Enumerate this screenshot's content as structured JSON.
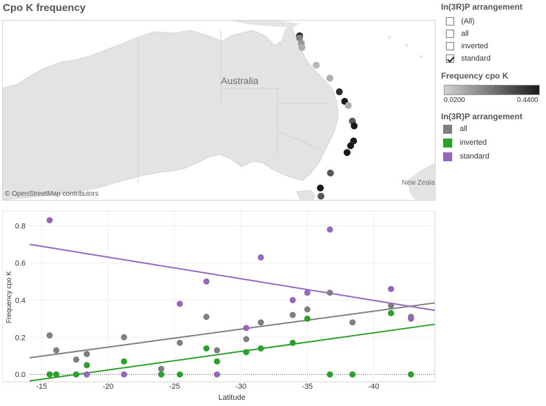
{
  "page": {
    "title": "Cpo K frequency"
  },
  "map": {
    "label": "Australia",
    "label_nz": "New Zeala",
    "attribution": "© OpenStreetMap contributors",
    "points": [
      {
        "lat": -14.9,
        "lon": 144.0,
        "freq": 0.44
      },
      {
        "lat": -15.2,
        "lon": 144.0,
        "freq": 0.2
      },
      {
        "lat": -16.0,
        "lon": 144.3,
        "freq": 0.15
      },
      {
        "lat": -16.6,
        "lon": 144.4,
        "freq": 0.1
      },
      {
        "lat": -19.2,
        "lon": 146.8,
        "freq": 0.08
      },
      {
        "lat": -21.1,
        "lon": 149.1,
        "freq": 0.1
      },
      {
        "lat": -23.1,
        "lon": 150.7,
        "freq": 0.4
      },
      {
        "lat": -24.5,
        "lon": 151.6,
        "freq": 0.44
      },
      {
        "lat": -25.1,
        "lon": 152.2,
        "freq": 0.1
      },
      {
        "lat": -27.4,
        "lon": 152.9,
        "freq": 0.3
      },
      {
        "lat": -28.1,
        "lon": 153.2,
        "freq": 0.44
      },
      {
        "lat": -30.3,
        "lon": 153.1,
        "freq": 0.44
      },
      {
        "lat": -31.0,
        "lon": 152.6,
        "freq": 0.44
      },
      {
        "lat": -32.0,
        "lon": 152.0,
        "freq": 0.44
      },
      {
        "lat": -35.0,
        "lon": 149.2,
        "freq": 0.3
      },
      {
        "lat": -37.2,
        "lon": 147.5,
        "freq": 0.44
      },
      {
        "lat": -38.4,
        "lon": 147.6,
        "freq": 0.3
      }
    ]
  },
  "filter": {
    "title": "In(3R)P arrangement",
    "options": [
      {
        "label": "(All)",
        "checked": false
      },
      {
        "label": "all",
        "checked": false
      },
      {
        "label": "inverted",
        "checked": false
      },
      {
        "label": "standard",
        "checked": true
      }
    ]
  },
  "color_legend": {
    "title": "Frequency cpo K",
    "min_label": "0.0200",
    "max_label": "0.4400",
    "color_low": "#d0d0d0",
    "color_high": "#1a1a1a"
  },
  "series_legend": {
    "title": "In(3R)P arrangement",
    "items": [
      {
        "label": "all",
        "color": "#7f7f7f"
      },
      {
        "label": "inverted",
        "color": "#2ca02c"
      },
      {
        "label": "standard",
        "color": "#9467bd"
      }
    ]
  },
  "chart_data": {
    "type": "scatter",
    "xlabel": "Latitude",
    "ylabel": "Frequency cpo K",
    "xlim": [
      -14.1,
      -44.6
    ],
    "ylim": [
      -0.04,
      0.88
    ],
    "x_ticks": [
      -15,
      -20,
      -25,
      -30,
      -35,
      -40
    ],
    "y_ticks": [
      0.0,
      0.2,
      0.4,
      0.6,
      0.8
    ],
    "y_tick_labels": [
      "0.0",
      "0.2",
      "0.4",
      "0.6",
      "0.8"
    ],
    "x_tick_labels": [
      "-15",
      "-20",
      "-25",
      "-30",
      "-35",
      "-40"
    ],
    "grid": true,
    "zero_line": "dotted",
    "series": [
      {
        "name": "all",
        "color": "#7f7f7f",
        "x": [
          -15.6,
          -16.1,
          -17.6,
          -18.4,
          -21.2,
          -24.0,
          -25.4,
          -27.4,
          -28.2,
          -30.4,
          -31.5,
          -33.9,
          -35.0,
          -36.7,
          -38.4,
          -41.3,
          -42.8
        ],
        "y": [
          0.21,
          0.13,
          0.08,
          0.11,
          0.2,
          0.03,
          0.17,
          0.31,
          0.13,
          0.19,
          0.28,
          0.32,
          0.35,
          0.44,
          0.28,
          0.37,
          0.31
        ],
        "trend": [
          [
            -14.1,
            0.09
          ],
          [
            -44.6,
            0.385
          ]
        ]
      },
      {
        "name": "inverted",
        "color": "#2ca02c",
        "x": [
          -15.6,
          -16.1,
          -17.6,
          -18.4,
          -21.2,
          -24.0,
          -25.4,
          -27.4,
          -28.2,
          -30.4,
          -31.5,
          -33.9,
          -35.0,
          -36.7,
          -38.4,
          -41.3,
          -42.8
        ],
        "y": [
          0.0,
          0.0,
          0.0,
          0.05,
          0.07,
          0.0,
          0.0,
          0.14,
          0.07,
          0.12,
          0.14,
          0.17,
          0.3,
          0.0,
          0.0,
          0.33,
          0.0
        ],
        "trend": [
          [
            -14.1,
            -0.035
          ],
          [
            -44.6,
            0.27
          ]
        ]
      },
      {
        "name": "standard",
        "color": "#9467bd",
        "x": [
          -15.6,
          -18.4,
          -21.2,
          -25.4,
          -27.4,
          -28.2,
          -30.4,
          -31.5,
          -33.9,
          -35.0,
          -36.7,
          -41.3,
          -42.8
        ],
        "y": [
          0.83,
          0.0,
          0.0,
          0.38,
          0.5,
          0.0,
          0.25,
          0.63,
          0.4,
          0.44,
          0.78,
          0.46,
          0.3
        ],
        "trend": [
          [
            -14.1,
            0.7
          ],
          [
            -44.6,
            0.345
          ]
        ]
      }
    ]
  }
}
